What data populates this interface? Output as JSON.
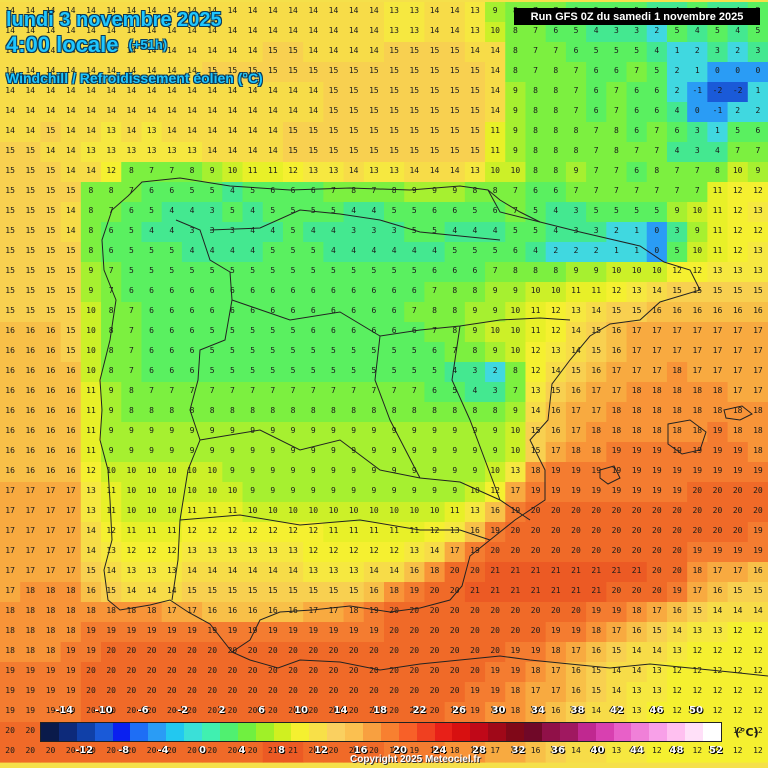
{
  "header": {
    "date": "lundi 3 novembre 2025",
    "time": "4:00 locale",
    "offset": "(+51h)",
    "parameter": "Windchill / Refroidissement éolien (°C)",
    "run": "Run GFS 0Z du samedi 1 novembre 2025",
    "copyright": "Copyright 2025 Meteociel.fr"
  },
  "legend": {
    "unit": "(°C)",
    "top_labels": [
      "-14",
      "-10",
      "-6",
      "-2",
      "2",
      "6",
      "10",
      "14",
      "18",
      "22",
      "26",
      "30",
      "34",
      "38",
      "42",
      "46",
      "50"
    ],
    "bottom_labels": [
      "-12",
      "-8",
      "-4",
      "0",
      "4",
      "8",
      "12",
      "16",
      "20",
      "24",
      "28",
      "32",
      "36",
      "40",
      "44",
      "48",
      "52"
    ],
    "colors": [
      "#0a1a4a",
      "#0d2a7a",
      "#1040a8",
      "#1a5ad8",
      "#0a20f0",
      "#1e6ef5",
      "#2a9cf5",
      "#22c8f0",
      "#3ae0d8",
      "#40f0b0",
      "#50f070",
      "#70f040",
      "#a0f028",
      "#d0f020",
      "#f5f030",
      "#f8e048",
      "#fad060",
      "#fbc050",
      "#f8a040",
      "#f88030",
      "#f86028",
      "#f04020",
      "#e82018",
      "#d81010",
      "#c00818",
      "#a00818",
      "#800818",
      "#700828",
      "#901048",
      "#a01860",
      "#c02890",
      "#d840b0",
      "#e860c8",
      "#f080d8",
      "#f8a0e8",
      "#ffc0f0",
      "#ffe0f8",
      "#ffffff"
    ]
  },
  "map_grid": {
    "columns": 38,
    "rows": [
      [
        14,
        14,
        14,
        14,
        14,
        14,
        14,
        14,
        14,
        14,
        14,
        14,
        14,
        14,
        14,
        14,
        14,
        14,
        14,
        13,
        13,
        14,
        14,
        13,
        9,
        8,
        7,
        7,
        6,
        5,
        5,
        5,
        4,
        4,
        5,
        4,
        4,
        5
      ],
      [
        14,
        14,
        14,
        14,
        14,
        14,
        14,
        14,
        14,
        14,
        14,
        14,
        14,
        14,
        14,
        14,
        14,
        14,
        14,
        13,
        13,
        14,
        14,
        13,
        10,
        8,
        7,
        6,
        5,
        4,
        3,
        3,
        2,
        5,
        4,
        5,
        4,
        5
      ],
      [
        14,
        14,
        14,
        14,
        14,
        14,
        14,
        14,
        14,
        14,
        14,
        14,
        14,
        15,
        15,
        14,
        14,
        14,
        14,
        15,
        15,
        15,
        15,
        14,
        14,
        8,
        7,
        7,
        6,
        5,
        5,
        5,
        4,
        1,
        2,
        3,
        2,
        3
      ],
      [
        14,
        14,
        14,
        14,
        14,
        14,
        14,
        14,
        14,
        14,
        15,
        15,
        15,
        15,
        15,
        15,
        15,
        15,
        15,
        15,
        15,
        15,
        15,
        15,
        14,
        8,
        7,
        8,
        7,
        6,
        6,
        7,
        5,
        2,
        1,
        0,
        0,
        0
      ],
      [
        14,
        14,
        14,
        14,
        14,
        14,
        14,
        14,
        14,
        14,
        14,
        14,
        14,
        14,
        14,
        14,
        15,
        15,
        15,
        15,
        15,
        15,
        15,
        15,
        14,
        9,
        8,
        8,
        7,
        6,
        7,
        6,
        6,
        2,
        -1,
        -2,
        -2,
        1
      ],
      [
        14,
        14,
        14,
        14,
        14,
        14,
        14,
        14,
        14,
        14,
        14,
        14,
        14,
        14,
        14,
        14,
        15,
        15,
        15,
        15,
        15,
        15,
        15,
        15,
        14,
        9,
        8,
        8,
        7,
        6,
        7,
        6,
        6,
        4,
        0,
        -1,
        2,
        2
      ],
      [
        14,
        14,
        15,
        14,
        14,
        13,
        14,
        13,
        14,
        14,
        14,
        14,
        14,
        14,
        15,
        15,
        15,
        15,
        15,
        15,
        15,
        15,
        15,
        15,
        11,
        9,
        8,
        8,
        8,
        7,
        8,
        6,
        7,
        6,
        3,
        1,
        5,
        6
      ],
      [
        15,
        15,
        14,
        14,
        13,
        13,
        13,
        13,
        13,
        13,
        14,
        14,
        14,
        14,
        15,
        15,
        15,
        15,
        15,
        15,
        15,
        15,
        15,
        15,
        11,
        9,
        8,
        8,
        8,
        7,
        8,
        7,
        7,
        4,
        3,
        4,
        7,
        7
      ],
      [
        15,
        15,
        15,
        14,
        14,
        12,
        8,
        7,
        7,
        8,
        9,
        10,
        11,
        11,
        12,
        13,
        13,
        14,
        13,
        13,
        14,
        14,
        14,
        13,
        10,
        10,
        8,
        8,
        9,
        7,
        7,
        6,
        8,
        7,
        7,
        8,
        10,
        9
      ],
      [
        15,
        15,
        15,
        15,
        8,
        8,
        7,
        6,
        6,
        5,
        5,
        4,
        5,
        6,
        6,
        6,
        7,
        8,
        7,
        8,
        9,
        9,
        9,
        8,
        8,
        7,
        6,
        6,
        7,
        7,
        7,
        7,
        7,
        7,
        7,
        11,
        12,
        12
      ],
      [
        15,
        15,
        15,
        14,
        8,
        7,
        6,
        5,
        4,
        4,
        3,
        5,
        4,
        5,
        5,
        5,
        5,
        4,
        4,
        5,
        5,
        6,
        6,
        5,
        6,
        7,
        5,
        4,
        3,
        5,
        5,
        5,
        5,
        9,
        10,
        11,
        12,
        13
      ],
      [
        15,
        15,
        15,
        14,
        8,
        6,
        5,
        4,
        4,
        3,
        3,
        3,
        4,
        4,
        5,
        4,
        4,
        3,
        3,
        3,
        5,
        5,
        4,
        4,
        4,
        5,
        5,
        4,
        3,
        3,
        2,
        1,
        0,
        3,
        9,
        11,
        12,
        12
      ],
      [
        15,
        15,
        15,
        15,
        8,
        6,
        5,
        5,
        5,
        4,
        4,
        4,
        4,
        5,
        5,
        5,
        4,
        4,
        4,
        4,
        4,
        4,
        5,
        5,
        5,
        6,
        4,
        2,
        2,
        2,
        1,
        1,
        0,
        5,
        10,
        11,
        12,
        13
      ],
      [
        15,
        15,
        15,
        15,
        9,
        7,
        5,
        5,
        5,
        5,
        5,
        5,
        5,
        5,
        5,
        5,
        5,
        5,
        5,
        5,
        5,
        6,
        6,
        6,
        7,
        8,
        8,
        8,
        9,
        9,
        10,
        10,
        10,
        12,
        12,
        13,
        13,
        13
      ],
      [
        15,
        15,
        15,
        15,
        9,
        7,
        6,
        6,
        6,
        6,
        6,
        6,
        6,
        6,
        6,
        6,
        6,
        6,
        6,
        6,
        6,
        7,
        8,
        8,
        9,
        9,
        10,
        10,
        11,
        11,
        12,
        13,
        14,
        15,
        15,
        15,
        15,
        15
      ],
      [
        15,
        15,
        15,
        15,
        10,
        8,
        7,
        6,
        6,
        6,
        6,
        6,
        6,
        6,
        6,
        6,
        6,
        6,
        6,
        6,
        7,
        8,
        8,
        9,
        9,
        10,
        11,
        12,
        13,
        14,
        15,
        15,
        16,
        16,
        16,
        16,
        16,
        16
      ],
      [
        16,
        16,
        16,
        15,
        10,
        8,
        7,
        6,
        6,
        6,
        5,
        5,
        5,
        5,
        5,
        6,
        6,
        6,
        6,
        6,
        6,
        7,
        8,
        9,
        10,
        10,
        11,
        12,
        14,
        15,
        16,
        17,
        17,
        17,
        17,
        17,
        17,
        17
      ],
      [
        16,
        16,
        16,
        15,
        10,
        8,
        7,
        6,
        6,
        6,
        5,
        5,
        5,
        5,
        5,
        5,
        5,
        5,
        5,
        5,
        5,
        6,
        7,
        8,
        9,
        10,
        12,
        13,
        14,
        15,
        16,
        17,
        17,
        17,
        17,
        17,
        17,
        17
      ],
      [
        16,
        16,
        16,
        16,
        10,
        8,
        7,
        6,
        6,
        6,
        5,
        5,
        5,
        5,
        5,
        5,
        5,
        5,
        5,
        5,
        5,
        5,
        4,
        3,
        2,
        8,
        12,
        14,
        15,
        16,
        17,
        17,
        17,
        18,
        17,
        17,
        17,
        17
      ],
      [
        16,
        16,
        16,
        16,
        11,
        9,
        8,
        7,
        7,
        7,
        7,
        7,
        7,
        7,
        7,
        7,
        7,
        7,
        7,
        7,
        7,
        6,
        5,
        4,
        3,
        7,
        13,
        15,
        16,
        17,
        17,
        18,
        18,
        18,
        18,
        18,
        17,
        17
      ],
      [
        16,
        16,
        16,
        16,
        11,
        9,
        8,
        8,
        8,
        8,
        8,
        8,
        8,
        8,
        8,
        8,
        8,
        8,
        8,
        8,
        8,
        8,
        8,
        8,
        8,
        9,
        14,
        16,
        17,
        17,
        18,
        18,
        18,
        18,
        18,
        18,
        18,
        18
      ],
      [
        16,
        16,
        16,
        16,
        11,
        9,
        9,
        9,
        9,
        9,
        9,
        9,
        9,
        9,
        9,
        9,
        9,
        9,
        9,
        9,
        9,
        9,
        9,
        9,
        9,
        10,
        15,
        16,
        17,
        18,
        18,
        18,
        18,
        18,
        18,
        19,
        18,
        18
      ],
      [
        16,
        16,
        16,
        16,
        11,
        9,
        9,
        9,
        9,
        9,
        9,
        9,
        9,
        9,
        9,
        9,
        9,
        9,
        9,
        9,
        9,
        9,
        9,
        9,
        9,
        10,
        15,
        17,
        18,
        18,
        19,
        19,
        19,
        19,
        19,
        19,
        19,
        18
      ],
      [
        16,
        16,
        16,
        16,
        12,
        10,
        10,
        10,
        10,
        10,
        10,
        9,
        9,
        9,
        9,
        9,
        9,
        9,
        9,
        9,
        9,
        9,
        9,
        9,
        10,
        13,
        18,
        19,
        19,
        19,
        19,
        19,
        19,
        19,
        19,
        19,
        19,
        19
      ],
      [
        17,
        17,
        17,
        17,
        13,
        11,
        10,
        10,
        10,
        10,
        10,
        10,
        9,
        9,
        9,
        9,
        9,
        9,
        9,
        9,
        9,
        9,
        9,
        10,
        12,
        17,
        19,
        19,
        19,
        19,
        19,
        19,
        19,
        19,
        20,
        20,
        20,
        20
      ],
      [
        17,
        17,
        17,
        17,
        13,
        11,
        10,
        10,
        10,
        11,
        11,
        11,
        10,
        10,
        10,
        10,
        10,
        10,
        10,
        10,
        10,
        10,
        11,
        13,
        16,
        19,
        20,
        20,
        20,
        20,
        20,
        20,
        20,
        20,
        20,
        20,
        20,
        20
      ],
      [
        17,
        17,
        17,
        17,
        14,
        12,
        11,
        11,
        11,
        12,
        12,
        12,
        12,
        12,
        12,
        12,
        11,
        11,
        11,
        11,
        11,
        12,
        13,
        16,
        19,
        20,
        20,
        20,
        20,
        20,
        20,
        20,
        20,
        20,
        20,
        20,
        20,
        19
      ],
      [
        17,
        17,
        17,
        17,
        14,
        13,
        12,
        12,
        12,
        13,
        13,
        13,
        13,
        13,
        13,
        12,
        12,
        12,
        12,
        12,
        13,
        14,
        17,
        19,
        20,
        20,
        20,
        20,
        20,
        20,
        20,
        20,
        20,
        20,
        19,
        19,
        19,
        19
      ],
      [
        17,
        17,
        17,
        17,
        15,
        14,
        13,
        13,
        13,
        14,
        14,
        14,
        14,
        14,
        14,
        13,
        13,
        13,
        14,
        14,
        16,
        18,
        20,
        20,
        21,
        21,
        21,
        21,
        21,
        21,
        21,
        21,
        20,
        20,
        18,
        17,
        17,
        16
      ],
      [
        17,
        18,
        18,
        18,
        16,
        15,
        14,
        14,
        14,
        15,
        15,
        15,
        15,
        15,
        15,
        15,
        15,
        15,
        16,
        18,
        19,
        20,
        20,
        21,
        21,
        21,
        21,
        21,
        21,
        21,
        20,
        20,
        20,
        19,
        17,
        16,
        15,
        15
      ],
      [
        18,
        18,
        18,
        18,
        18,
        18,
        18,
        18,
        17,
        17,
        16,
        16,
        16,
        16,
        16,
        17,
        17,
        18,
        19,
        20,
        20,
        20,
        20,
        20,
        20,
        20,
        20,
        20,
        20,
        19,
        19,
        18,
        17,
        16,
        15,
        14,
        14,
        14
      ],
      [
        18,
        18,
        18,
        18,
        19,
        19,
        19,
        19,
        19,
        19,
        19,
        19,
        19,
        19,
        19,
        19,
        19,
        19,
        19,
        20,
        20,
        20,
        20,
        20,
        20,
        20,
        20,
        19,
        19,
        18,
        17,
        16,
        15,
        14,
        13,
        13,
        12,
        12
      ],
      [
        18,
        18,
        18,
        19,
        19,
        20,
        20,
        20,
        20,
        20,
        20,
        20,
        20,
        20,
        20,
        20,
        20,
        20,
        20,
        20,
        20,
        20,
        20,
        20,
        20,
        19,
        19,
        18,
        17,
        16,
        15,
        14,
        14,
        13,
        12,
        12,
        12,
        12
      ],
      [
        19,
        19,
        19,
        19,
        20,
        20,
        20,
        20,
        20,
        20,
        20,
        20,
        20,
        20,
        20,
        20,
        20,
        20,
        20,
        20,
        20,
        20,
        20,
        20,
        19,
        19,
        18,
        17,
        16,
        15,
        14,
        14,
        13,
        12,
        12,
        12,
        12,
        12
      ],
      [
        19,
        19,
        19,
        19,
        20,
        20,
        20,
        20,
        20,
        20,
        20,
        20,
        20,
        20,
        20,
        20,
        20,
        20,
        20,
        20,
        20,
        20,
        20,
        19,
        19,
        18,
        17,
        17,
        16,
        15,
        14,
        13,
        13,
        12,
        12,
        12,
        12,
        12
      ],
      [
        19,
        19,
        19,
        19,
        20,
        20,
        20,
        20,
        20,
        20,
        20,
        20,
        20,
        20,
        20,
        20,
        20,
        20,
        20,
        20,
        20,
        20,
        19,
        19,
        18,
        18,
        17,
        16,
        15,
        14,
        14,
        13,
        12,
        12,
        12,
        12,
        12,
        12
      ],
      [
        20,
        20,
        20,
        20,
        20,
        20,
        20,
        20,
        20,
        20,
        20,
        20,
        20,
        20,
        20,
        20,
        20,
        20,
        20,
        20,
        20,
        19,
        19,
        18,
        18,
        17,
        16,
        16,
        15,
        14,
        13,
        13,
        12,
        12,
        12,
        12,
        12,
        12
      ],
      [
        20,
        20,
        20,
        20,
        20,
        20,
        20,
        20,
        20,
        20,
        20,
        20,
        20,
        21,
        21,
        20,
        20,
        20,
        20,
        19,
        19,
        19,
        18,
        18,
        17,
        17,
        16,
        15,
        14,
        14,
        13,
        13,
        12,
        12,
        12,
        12,
        12,
        12
      ]
    ]
  }
}
